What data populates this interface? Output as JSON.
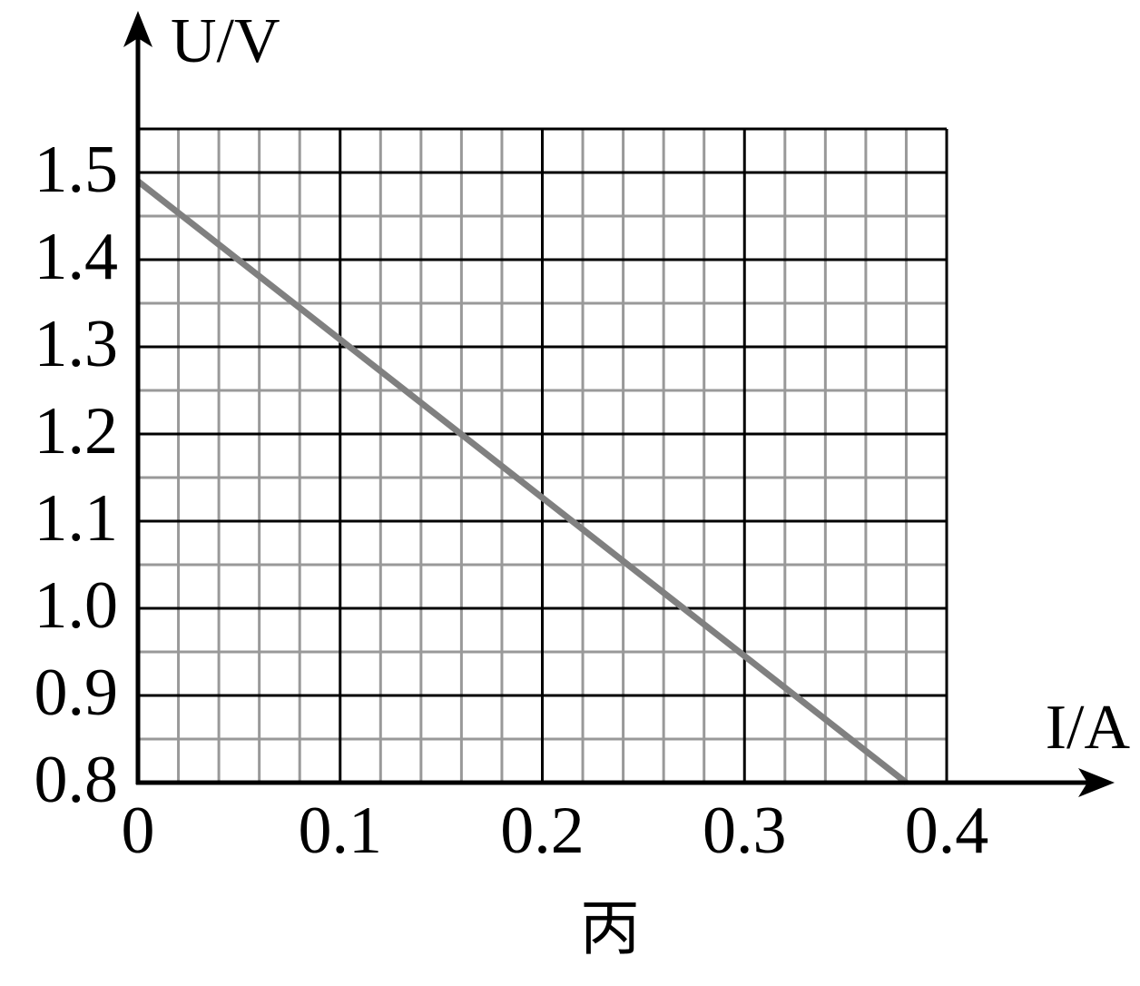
{
  "chart_data": {
    "type": "line",
    "caption": "丙",
    "x_label": "I/A",
    "y_label": "U/V",
    "x": [
      0,
      0.38
    ],
    "series": [
      {
        "color": "#808080",
        "values": [
          1.49,
          0.8
        ]
      }
    ],
    "xlim": [
      0,
      0.4
    ],
    "xticks": [
      0,
      0.1,
      0.2,
      0.3,
      0.4
    ],
    "ylim": [
      0.8,
      1.55
    ],
    "yticks": [
      0.8,
      0.9,
      {
        "value": 1,
        "label": "1.0"
      },
      1.1,
      1.2,
      1.3,
      1.4,
      1.5
    ],
    "grid": true
  }
}
